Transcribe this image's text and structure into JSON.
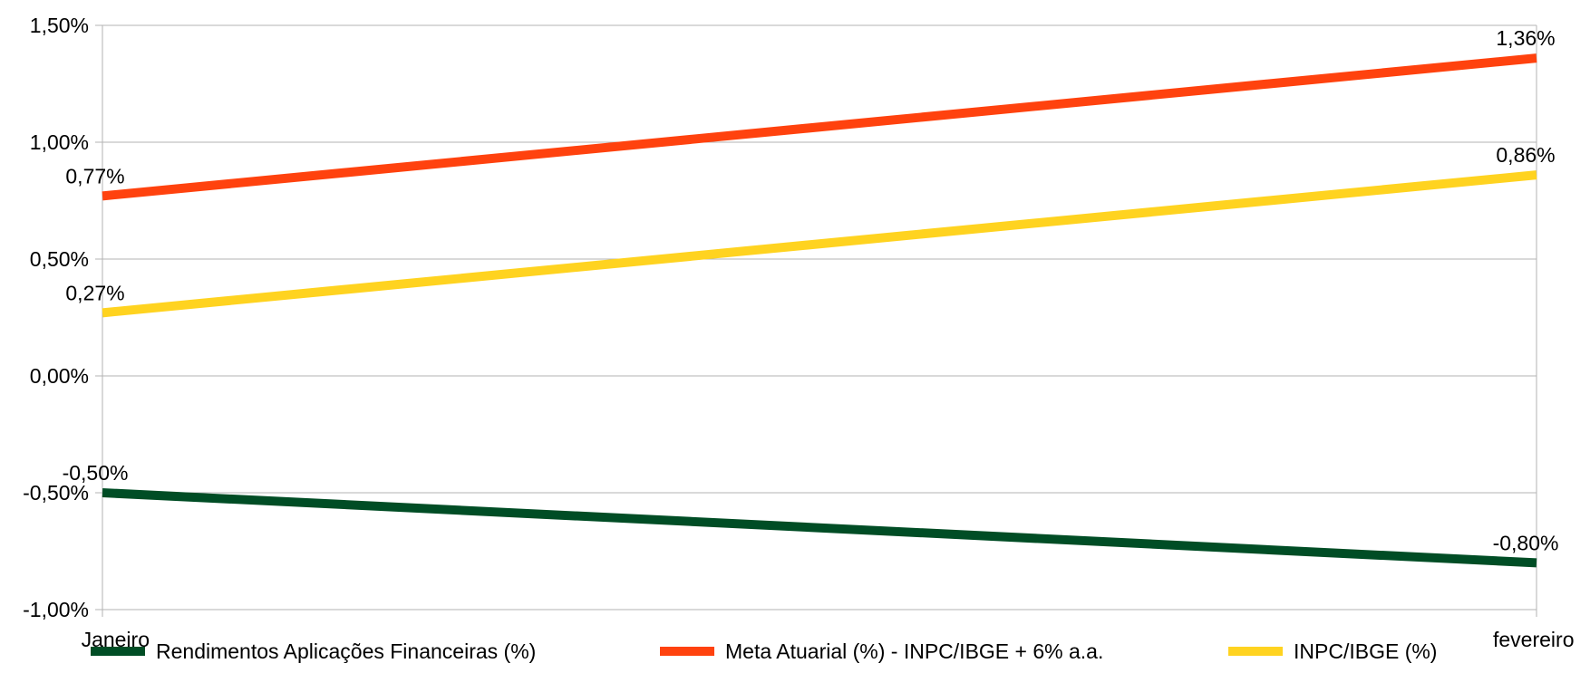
{
  "chart_data": {
    "type": "line",
    "title": "",
    "xlabel": "",
    "ylabel": "",
    "categories": [
      "Janeiro",
      "fevereiro"
    ],
    "ylim": [
      -1.0,
      1.5
    ],
    "yticks": [
      -1.0,
      -0.5,
      0.0,
      0.5,
      1.0,
      1.5
    ],
    "ytick_labels": [
      "-1,00%",
      "-0,50%",
      "0,00%",
      "0,50%",
      "1,00%",
      "1,50%"
    ],
    "grid": true,
    "legend_position": "bottom",
    "series": [
      {
        "name": "Rendimentos Aplicações Financeiras (%)",
        "values": [
          -0.5,
          -0.8
        ],
        "labels": [
          "-0,50%",
          "-0,80%"
        ],
        "color": "#004d25"
      },
      {
        "name": "Meta Atuarial (%) - INPC/IBGE + 6% a.a.",
        "values": [
          0.77,
          1.36
        ],
        "labels": [
          "0,77%",
          "1,36%"
        ],
        "color": "#ff420e"
      },
      {
        "name": "INPC/IBGE (%)",
        "values": [
          0.27,
          0.86
        ],
        "labels": [
          "0,27%",
          "0,86%"
        ],
        "color": "#ffd320"
      }
    ]
  }
}
